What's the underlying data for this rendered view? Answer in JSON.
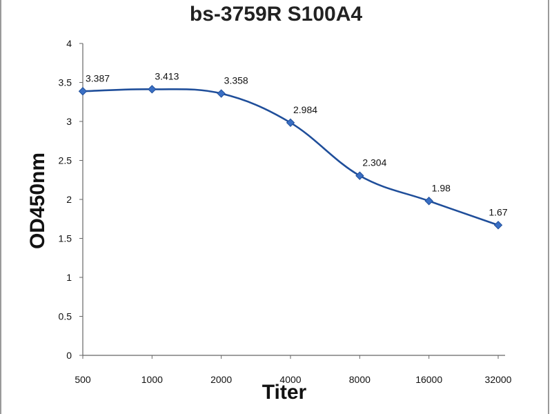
{
  "chart_data": {
    "type": "line",
    "title": "bs-3759R S100A4",
    "xlabel": "Titer",
    "ylabel": "OD450nm",
    "categories": [
      "500",
      "1000",
      "2000",
      "4000",
      "8000",
      "16000",
      "32000"
    ],
    "series": [
      {
        "values": [
          3.387,
          3.413,
          3.358,
          2.984,
          2.304,
          1.98,
          1.67
        ],
        "data_labels": [
          "3.387",
          "3.413",
          "3.358",
          "2.984",
          "2.304",
          "1.98",
          "1.67"
        ],
        "color": "#1f4e9a",
        "marker": "diamond"
      }
    ],
    "yticks": [
      "0",
      "0.5",
      "1",
      "1.5",
      "2",
      "2.5",
      "3",
      "3.5",
      "4"
    ],
    "ylim": [
      0,
      4
    ],
    "grid": false,
    "legend": "none"
  }
}
